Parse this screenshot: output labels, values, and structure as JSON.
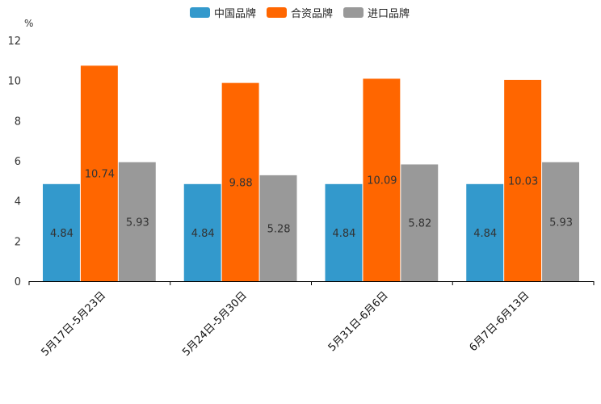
{
  "chart_data": {
    "type": "bar",
    "title": "",
    "xlabel": "",
    "ylabel": "%",
    "ylim": [
      0,
      12
    ],
    "yticks": [
      0,
      2,
      4,
      6,
      8,
      10,
      12
    ],
    "categories": [
      "5月17日-5月23日",
      "5月24日-5月30日",
      "5月31日-6月6日",
      "6月7日-6月13日"
    ],
    "series": [
      {
        "name": "中国品牌",
        "color": "#3399cc",
        "values": [
          4.84,
          4.84,
          4.84,
          4.84
        ]
      },
      {
        "name": "合资品牌",
        "color": "#ff6600",
        "values": [
          10.74,
          9.88,
          10.09,
          10.03
        ]
      },
      {
        "name": "进口品牌",
        "color": "#999999",
        "values": [
          5.93,
          5.28,
          5.82,
          5.93
        ]
      }
    ],
    "legend": "top-center",
    "grid": false
  }
}
